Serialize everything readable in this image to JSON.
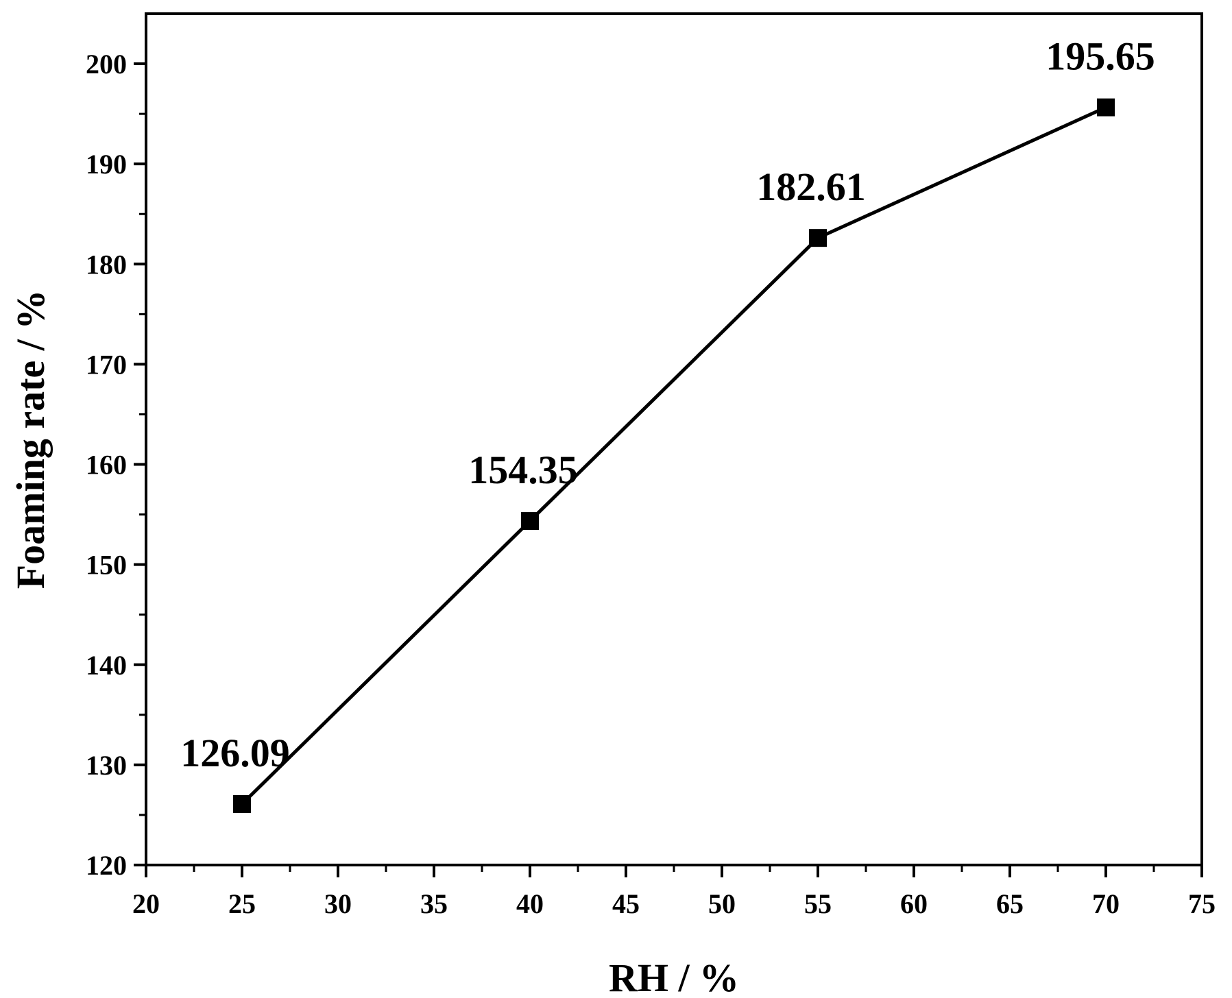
{
  "chart_data": {
    "type": "line",
    "xlabel": "RH / %",
    "ylabel": "Foaming rate / %",
    "xlim": [
      20,
      75
    ],
    "ylim": [
      120,
      205
    ],
    "x_ticks": [
      20,
      25,
      30,
      35,
      40,
      45,
      50,
      55,
      60,
      65,
      70,
      75
    ],
    "y_ticks": [
      120,
      130,
      140,
      150,
      160,
      170,
      180,
      190,
      200
    ],
    "grid": false,
    "legend": "none",
    "series": [
      {
        "x": [
          25,
          40,
          55,
          70
        ],
        "y": [
          126.09,
          154.35,
          182.61,
          195.65
        ],
        "labels": [
          "126.09",
          "154.35",
          "182.61",
          "195.65"
        ],
        "color": "#000000",
        "marker": "square"
      }
    ]
  }
}
